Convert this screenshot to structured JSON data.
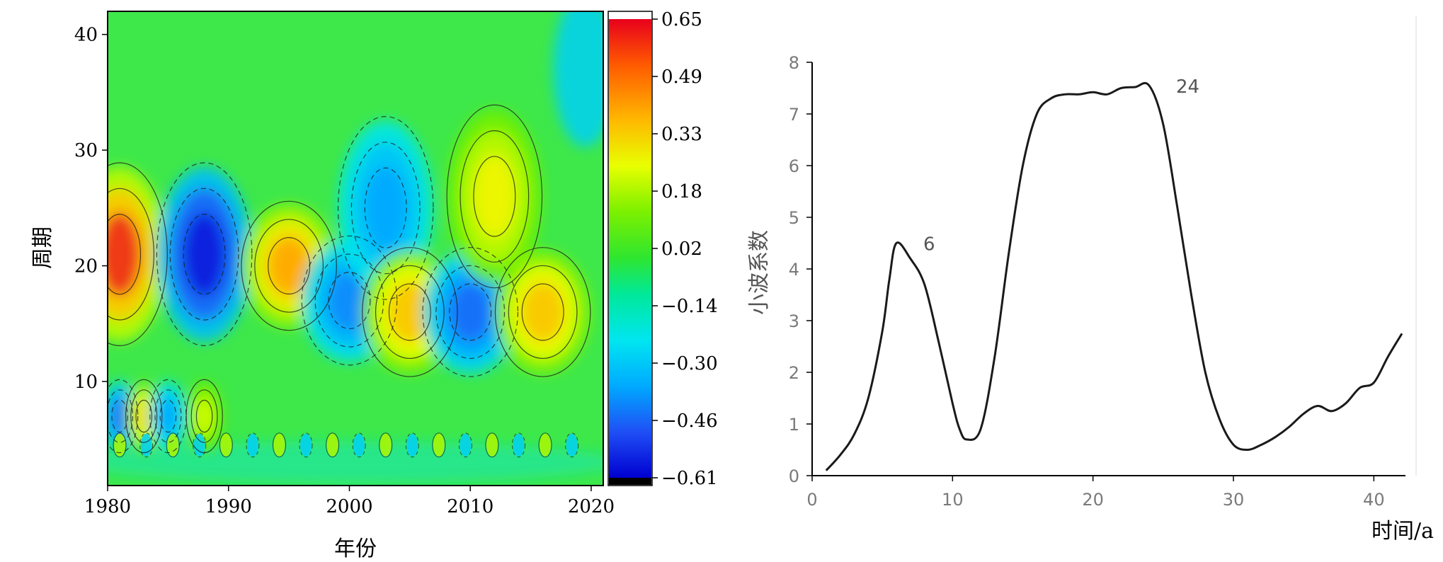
{
  "chart_data": [
    {
      "type": "heatmap",
      "xlabel": "年份",
      "ylabel": "周期",
      "xlim": [
        1980,
        2021
      ],
      "ylim": [
        1,
        42
      ],
      "xticks": [
        "1980",
        "1990",
        "2000",
        "2010",
        "2020"
      ],
      "yticks": [
        "10",
        "20",
        "30",
        "40"
      ],
      "colorbar": {
        "labels": [
          "0.65",
          "0.49",
          "0.33",
          "0.18",
          "0.02",
          "−0.14",
          "−0.30",
          "−0.46",
          "−0.61"
        ],
        "min": -0.61,
        "max": 0.65,
        "colors": {
          "low": "#0000e6",
          "mid": "#2fe62f",
          "high": "#e8001c"
        }
      },
      "features": [
        {
          "year": 1981,
          "period": 21,
          "value": 0.6
        },
        {
          "year": 1988,
          "period": 21,
          "value": -0.55
        },
        {
          "year": 1995,
          "period": 20,
          "value": 0.5
        },
        {
          "year": 2000,
          "period": 17,
          "value": -0.35
        },
        {
          "year": 2003,
          "period": 25,
          "value": -0.3
        },
        {
          "year": 2005,
          "period": 16,
          "value": 0.45
        },
        {
          "year": 2010,
          "period": 16,
          "value": -0.4
        },
        {
          "year": 2012,
          "period": 26,
          "value": 0.35
        },
        {
          "year": 2016,
          "period": 16,
          "value": 0.45
        },
        {
          "year": 1981,
          "period": 7,
          "value": -0.4
        },
        {
          "year": 1983,
          "period": 7,
          "value": 0.4
        },
        {
          "year": 1985,
          "period": 7,
          "value": -0.3
        },
        {
          "year": 1988,
          "period": 7,
          "value": 0.3
        }
      ]
    },
    {
      "type": "line",
      "xlabel": "时间/a",
      "ylabel": "小波系数",
      "xlim": [
        0,
        42
      ],
      "ylim": [
        0,
        8
      ],
      "xticks": [
        "0",
        "10",
        "20",
        "30",
        "40"
      ],
      "yticks": [
        "0",
        "1",
        "2",
        "3",
        "4",
        "5",
        "6",
        "7",
        "8"
      ],
      "annotations": [
        {
          "text": "6",
          "x": 6,
          "y": 4.5
        },
        {
          "text": "24",
          "x": 24,
          "y": 7.55
        }
      ],
      "series": [
        {
          "x": [
            1,
            2,
            3,
            4,
            5,
            5.5,
            6,
            7,
            8,
            9,
            10,
            10.5,
            11,
            12,
            13,
            14,
            15,
            16,
            17,
            18,
            19,
            20,
            21,
            22,
            23,
            24,
            25,
            26,
            27,
            28,
            29,
            30,
            31,
            32,
            33,
            34,
            35,
            36,
            37,
            38,
            39,
            40,
            41,
            42
          ],
          "values": [
            0.1,
            0.4,
            0.8,
            1.5,
            2.8,
            3.8,
            4.5,
            4.2,
            3.7,
            2.6,
            1.4,
            0.9,
            0.7,
            0.9,
            2.3,
            4.3,
            6.0,
            7.0,
            7.3,
            7.38,
            7.38,
            7.42,
            7.38,
            7.5,
            7.52,
            7.55,
            6.8,
            5.2,
            3.5,
            2.0,
            1.1,
            0.6,
            0.5,
            0.6,
            0.75,
            0.95,
            1.2,
            1.35,
            1.25,
            1.4,
            1.7,
            1.8,
            2.3,
            2.75
          ]
        }
      ]
    }
  ]
}
